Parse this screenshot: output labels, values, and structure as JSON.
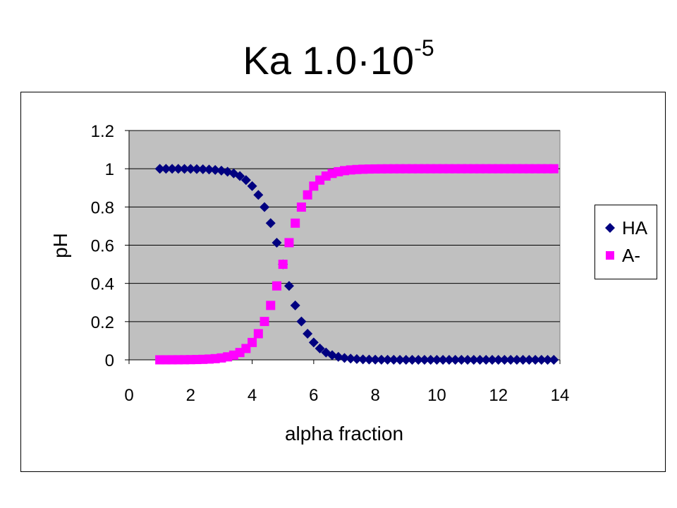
{
  "title": {
    "main": "Ka 1.0·10",
    "superscript": "-5"
  },
  "chart_data": {
    "type": "scatter",
    "xlabel": "alpha fraction",
    "ylabel": "pH",
    "xlim": [
      0,
      14
    ],
    "ylim": [
      0,
      1.2
    ],
    "x_ticks": [
      "0",
      "2",
      "4",
      "6",
      "8",
      "10",
      "12",
      "14"
    ],
    "y_ticks": [
      "0",
      "0.2",
      "0.4",
      "0.6",
      "0.8",
      "1",
      "1.2"
    ],
    "grid": "horizontal",
    "plot_background": "#c0c0c0",
    "legend_position": "right",
    "pKa": 5.0,
    "x_start": 1.0,
    "x_end": 13.8,
    "x_step": 0.2,
    "series": [
      {
        "name": "HA",
        "color": "#000080",
        "marker": "diamond",
        "formula": "1/(1+10^(x-pKa))"
      },
      {
        "name": "A-",
        "color": "#ff00ff",
        "marker": "square",
        "formula": "1-HA"
      }
    ]
  },
  "legend": {
    "items": [
      {
        "label": "HA",
        "color": "#000080",
        "marker": "diamond-icon"
      },
      {
        "label": "A-",
        "color": "#ff00ff",
        "marker": "square-icon"
      }
    ]
  }
}
